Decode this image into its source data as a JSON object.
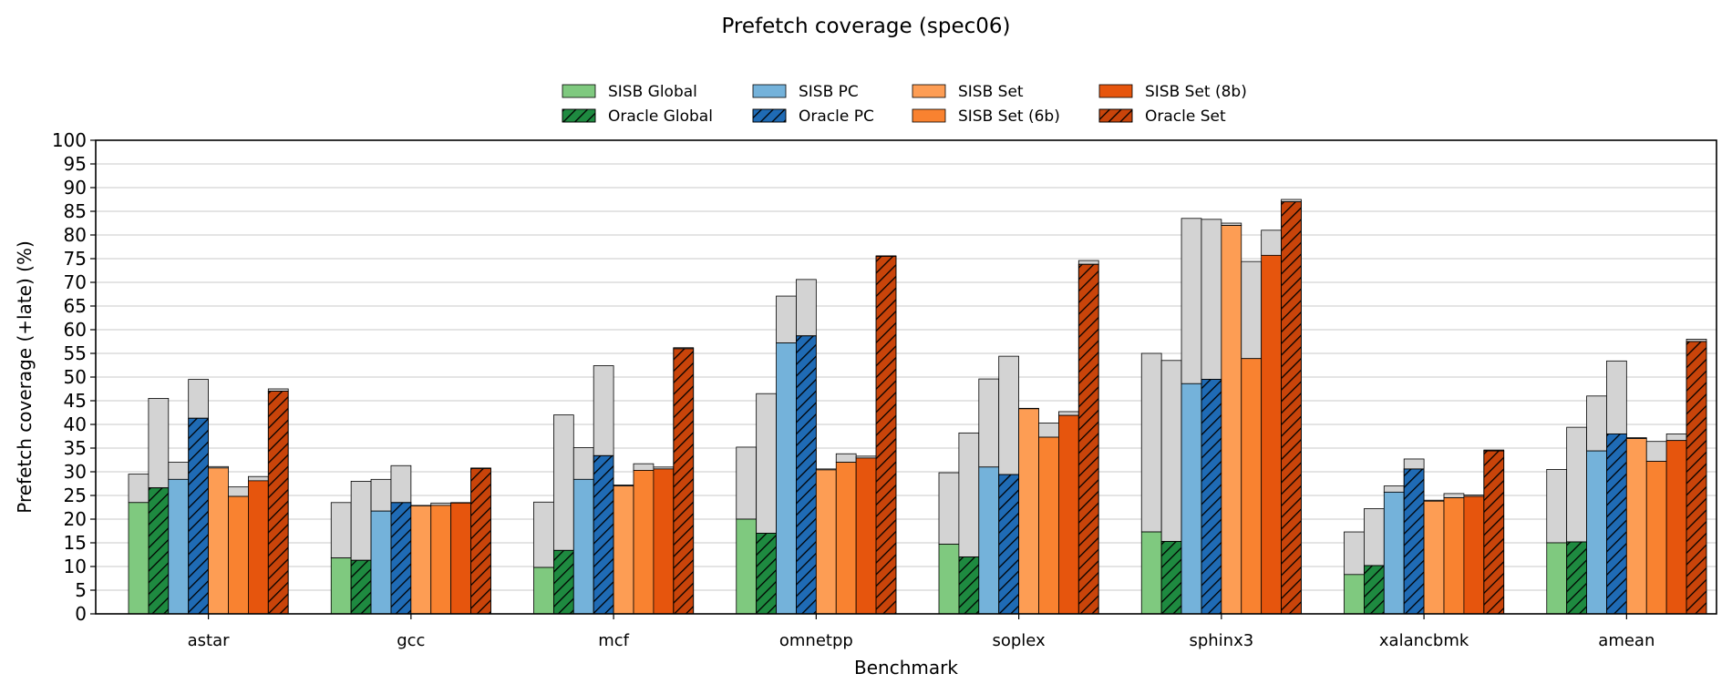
{
  "chart_data": {
    "type": "bar",
    "title": "Prefetch coverage (spec06)",
    "xlabel": "Benchmark",
    "ylabel": "Prefetch coverage (+late) (%)",
    "ylim": [
      0,
      100
    ],
    "yticks": [
      0,
      5,
      10,
      15,
      20,
      25,
      30,
      35,
      40,
      45,
      50,
      55,
      60,
      65,
      70,
      75,
      80,
      85,
      90,
      95,
      100
    ],
    "grid": "horizontal",
    "legend_position": "top-center",
    "stacked_segment": "late (gray)",
    "categories": [
      "astar",
      "gcc",
      "mcf",
      "omnetpp",
      "soplex",
      "sphinx3",
      "xalancbmk",
      "amean"
    ],
    "series": [
      {
        "name": "SISB Global",
        "color": "#7fc97f",
        "hatch": false,
        "values": [
          23.5,
          11.8,
          9.8,
          20.0,
          14.7,
          17.3,
          8.3,
          15.0
        ],
        "total": [
          29.5,
          23.5,
          23.6,
          35.2,
          29.8,
          55.0,
          17.3,
          30.5
        ]
      },
      {
        "name": "Oracle Global",
        "color": "#1e8a40",
        "hatch": true,
        "values": [
          26.6,
          11.3,
          13.4,
          17.0,
          12.0,
          15.3,
          10.2,
          15.2
        ],
        "total": [
          45.5,
          28.0,
          42.0,
          46.5,
          38.2,
          53.5,
          22.2,
          39.4
        ]
      },
      {
        "name": "SISB PC",
        "color": "#74b2da",
        "hatch": false,
        "values": [
          28.4,
          21.7,
          28.4,
          57.2,
          31.0,
          48.6,
          25.7,
          34.4
        ],
        "total": [
          32.0,
          28.4,
          35.1,
          67.1,
          49.6,
          83.5,
          27.0,
          46.0
        ]
      },
      {
        "name": "Oracle PC",
        "color": "#1f6bb5",
        "hatch": true,
        "values": [
          41.3,
          23.5,
          33.4,
          58.7,
          29.4,
          49.5,
          30.6,
          38.0
        ],
        "total": [
          49.5,
          31.3,
          52.4,
          70.6,
          54.4,
          83.3,
          32.7,
          53.4
        ]
      },
      {
        "name": "SISB Set",
        "color": "#fd9d54",
        "hatch": false,
        "values": [
          30.8,
          22.8,
          27.0,
          30.4,
          43.3,
          82.0,
          23.8,
          37.0
        ],
        "total": [
          31.1,
          22.9,
          27.2,
          30.6,
          43.4,
          82.5,
          24.0,
          37.2
        ]
      },
      {
        "name": "SISB Set (6b)",
        "color": "#f98230",
        "hatch": false,
        "values": [
          24.8,
          22.9,
          30.3,
          32.0,
          37.3,
          53.9,
          24.5,
          32.2
        ],
        "total": [
          26.8,
          23.4,
          31.7,
          33.8,
          40.3,
          74.4,
          25.4,
          36.4
        ]
      },
      {
        "name": "SISB Set (8b)",
        "color": "#e6550d",
        "hatch": false,
        "values": [
          28.1,
          23.4,
          30.6,
          32.9,
          41.9,
          75.7,
          24.8,
          36.6
        ],
        "total": [
          29.0,
          23.5,
          31.0,
          33.3,
          42.7,
          81.0,
          25.1,
          38.0
        ]
      },
      {
        "name": "Oracle Set",
        "color": "#c9440a",
        "hatch": true,
        "values": [
          47.0,
          30.7,
          56.0,
          75.5,
          73.8,
          87.0,
          34.4,
          57.5
        ],
        "total": [
          47.5,
          30.8,
          56.2,
          75.6,
          74.6,
          87.5,
          34.6,
          58.0
        ]
      }
    ]
  }
}
